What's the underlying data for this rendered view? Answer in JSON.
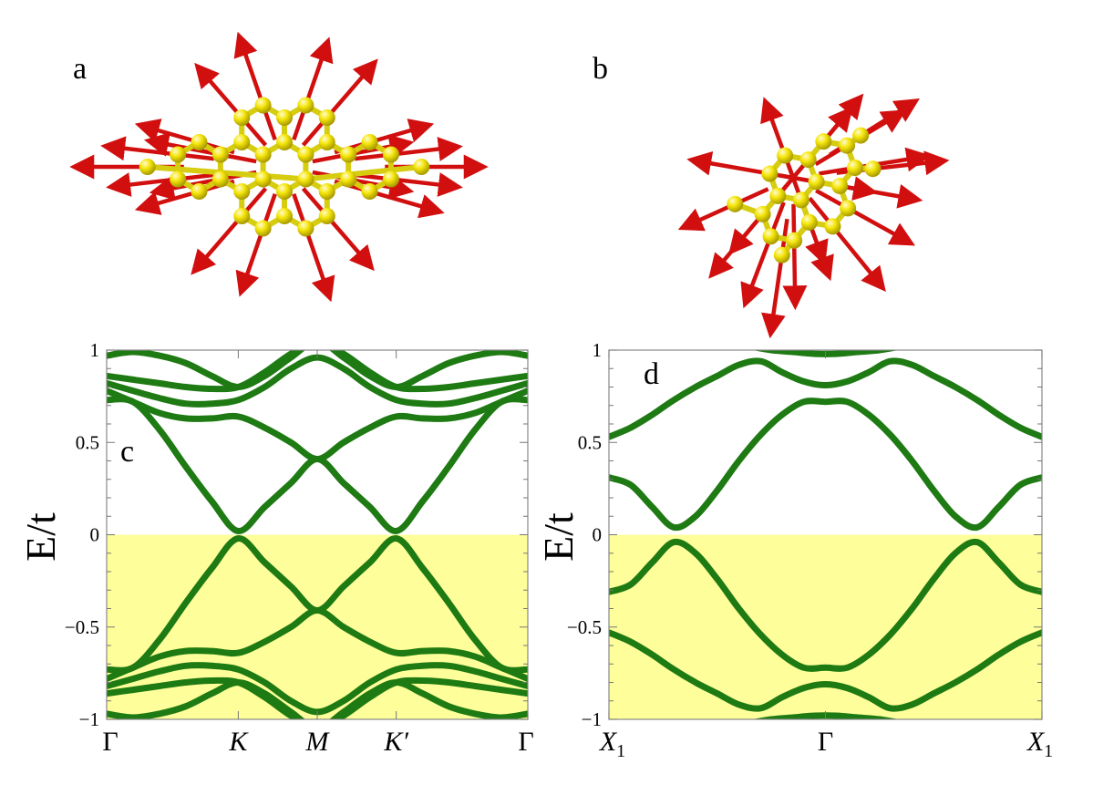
{
  "panels": {
    "a": {
      "letter": "a"
    },
    "b": {
      "letter": "b"
    },
    "c": {
      "letter": "c",
      "ylabel": "E/t",
      "yticks": [
        "1",
        "0.5",
        "0",
        "−0.5",
        "−1"
      ],
      "xticks": [
        {
          "label": "Γ",
          "italic": false
        },
        {
          "label": "K",
          "italic": true
        },
        {
          "label": "M",
          "italic": true
        },
        {
          "label": "K′",
          "italic": true
        },
        {
          "label": "Γ",
          "italic": false
        }
      ]
    },
    "d": {
      "letter": "d",
      "ylabel": "E/t",
      "yticks": [
        "1",
        "0.5",
        "0",
        "−0.5",
        "−1"
      ],
      "xticks": [
        {
          "label": "X",
          "sub": "1",
          "italic": true
        },
        {
          "label": "Γ",
          "italic": false
        },
        {
          "label": "X",
          "sub": "1",
          "italic": true
        }
      ]
    }
  },
  "colors": {
    "band": "#1e7a12",
    "occupied_shade": "#fefe9a",
    "atom": "#f5e60a",
    "arrow": "#d20f0f"
  },
  "chart_data": [
    {
      "panel": "c",
      "type": "line",
      "xlabel": "",
      "ylabel": "E/t",
      "ylim": [
        -1.0,
        1.0
      ],
      "x_ticks": [
        "Γ",
        "K",
        "M",
        "K′",
        "Γ"
      ],
      "x_tick_positions": [
        0,
        1,
        1.6,
        2.2,
        3.2
      ],
      "xlim": [
        0,
        3.2
      ],
      "shaded_region": {
        "y_from": -1.0,
        "y_to": 0.0
      },
      "series": [
        {
          "x": [
            0,
            0.2,
            0.4,
            0.6,
            0.8,
            1.0,
            1.2,
            1.4,
            1.6,
            1.8,
            2.0,
            2.2,
            2.4,
            2.6,
            2.8,
            3.0,
            3.2
          ],
          "y": [
            0.73,
            0.72,
            0.57,
            0.37,
            0.18,
            0.02,
            0.15,
            0.28,
            0.41,
            0.28,
            0.15,
            0.02,
            0.18,
            0.37,
            0.57,
            0.72,
            0.73
          ]
        },
        {
          "x": [
            0,
            0.2,
            0.4,
            0.6,
            0.8,
            1.0,
            1.2,
            1.4,
            1.6,
            1.8,
            2.0,
            2.2,
            2.4,
            2.6,
            2.8,
            3.0,
            3.2
          ],
          "y": [
            0.78,
            0.72,
            0.66,
            0.63,
            0.63,
            0.64,
            0.58,
            0.5,
            0.41,
            0.5,
            0.58,
            0.64,
            0.63,
            0.63,
            0.66,
            0.72,
            0.78
          ]
        },
        {
          "x": [
            0,
            0.2,
            0.4,
            0.6,
            0.8,
            1.0,
            1.2,
            1.4,
            1.6,
            1.8,
            2.0,
            2.2,
            2.4,
            2.6,
            2.8,
            3.0,
            3.2
          ],
          "y": [
            0.82,
            0.78,
            0.74,
            0.71,
            0.71,
            0.73,
            0.8,
            0.9,
            0.96,
            0.9,
            0.8,
            0.73,
            0.71,
            0.71,
            0.74,
            0.78,
            0.82
          ]
        },
        {
          "x": [
            0,
            0.2,
            0.4,
            0.6,
            0.8,
            1.0,
            1.2,
            1.4,
            1.6,
            1.8,
            2.0,
            2.2,
            2.4,
            2.6,
            2.8,
            3.0,
            3.2
          ],
          "y": [
            0.86,
            0.84,
            0.82,
            0.8,
            0.79,
            0.8,
            0.88,
            0.98,
            1.05,
            0.98,
            0.88,
            0.8,
            0.79,
            0.8,
            0.82,
            0.84,
            0.86
          ]
        },
        {
          "x": [
            0,
            0.2,
            0.4,
            0.6,
            0.8,
            1.0,
            1.2,
            1.4,
            1.6,
            1.8,
            2.0,
            2.2,
            2.4,
            2.6,
            2.8,
            3.0,
            3.2
          ],
          "y": [
            0.97,
            0.99,
            0.97,
            0.93,
            0.86,
            0.8,
            0.86,
            0.96,
            1.05,
            0.96,
            0.86,
            0.8,
            0.86,
            0.93,
            0.97,
            0.99,
            0.97
          ]
        },
        {
          "x": [
            0,
            0.2,
            0.4,
            0.6,
            0.8,
            1.0,
            1.2,
            1.4,
            1.6,
            1.8,
            2.0,
            2.2,
            2.4,
            2.6,
            2.8,
            3.0,
            3.2
          ],
          "y": [
            -0.73,
            -0.72,
            -0.57,
            -0.37,
            -0.18,
            -0.02,
            -0.15,
            -0.28,
            -0.41,
            -0.28,
            -0.15,
            -0.02,
            -0.18,
            -0.37,
            -0.57,
            -0.72,
            -0.73
          ]
        },
        {
          "x": [
            0,
            0.2,
            0.4,
            0.6,
            0.8,
            1.0,
            1.2,
            1.4,
            1.6,
            1.8,
            2.0,
            2.2,
            2.4,
            2.6,
            2.8,
            3.0,
            3.2
          ],
          "y": [
            -0.78,
            -0.72,
            -0.66,
            -0.63,
            -0.63,
            -0.64,
            -0.58,
            -0.5,
            -0.41,
            -0.5,
            -0.58,
            -0.64,
            -0.63,
            -0.63,
            -0.66,
            -0.72,
            -0.78
          ]
        },
        {
          "x": [
            0,
            0.2,
            0.4,
            0.6,
            0.8,
            1.0,
            1.2,
            1.4,
            1.6,
            1.8,
            2.0,
            2.2,
            2.4,
            2.6,
            2.8,
            3.0,
            3.2
          ],
          "y": [
            -0.82,
            -0.78,
            -0.74,
            -0.71,
            -0.71,
            -0.73,
            -0.8,
            -0.9,
            -0.96,
            -0.9,
            -0.8,
            -0.73,
            -0.71,
            -0.71,
            -0.74,
            -0.78,
            -0.82
          ]
        },
        {
          "x": [
            0,
            0.2,
            0.4,
            0.6,
            0.8,
            1.0,
            1.2,
            1.4,
            1.6,
            1.8,
            2.0,
            2.2,
            2.4,
            2.6,
            2.8,
            3.0,
            3.2
          ],
          "y": [
            -0.86,
            -0.84,
            -0.82,
            -0.8,
            -0.79,
            -0.8,
            -0.88,
            -0.98,
            -1.05,
            -0.98,
            -0.88,
            -0.8,
            -0.79,
            -0.8,
            -0.82,
            -0.84,
            -0.86
          ]
        },
        {
          "x": [
            0,
            0.2,
            0.4,
            0.6,
            0.8,
            1.0,
            1.2,
            1.4,
            1.6,
            1.8,
            2.0,
            2.2,
            2.4,
            2.6,
            2.8,
            3.0,
            3.2
          ],
          "y": [
            -0.97,
            -0.99,
            -0.97,
            -0.93,
            -0.86,
            -0.8,
            -0.86,
            -0.96,
            -1.05,
            -0.96,
            -0.86,
            -0.8,
            -0.86,
            -0.93,
            -0.97,
            -0.99,
            -0.97
          ]
        }
      ]
    },
    {
      "panel": "d",
      "type": "line",
      "xlabel": "",
      "ylabel": "E/t",
      "ylim": [
        -1.0,
        1.0
      ],
      "x_ticks": [
        "X1",
        "Γ",
        "X1"
      ],
      "x_tick_positions": [
        0,
        1,
        2
      ],
      "xlim": [
        0,
        2
      ],
      "shaded_region": {
        "y_from": -1.0,
        "y_to": 0.0
      },
      "series": [
        {
          "x": [
            0,
            0.1,
            0.2,
            0.3,
            0.4,
            0.5,
            0.6,
            0.7,
            0.8,
            0.9,
            1.0,
            1.1,
            1.2,
            1.3,
            1.4,
            1.5,
            1.6,
            1.7,
            1.8,
            1.9,
            2.0
          ],
          "y": [
            0.31,
            0.27,
            0.15,
            0.04,
            0.1,
            0.24,
            0.4,
            0.54,
            0.65,
            0.72,
            0.72,
            0.72,
            0.65,
            0.54,
            0.4,
            0.24,
            0.1,
            0.04,
            0.15,
            0.27,
            0.31
          ]
        },
        {
          "x": [
            0,
            0.1,
            0.2,
            0.3,
            0.4,
            0.5,
            0.6,
            0.7,
            0.8,
            0.9,
            1.0,
            1.1,
            1.2,
            1.3,
            1.4,
            1.5,
            1.6,
            1.7,
            1.8,
            1.9,
            2.0
          ],
          "y": [
            0.53,
            0.58,
            0.65,
            0.73,
            0.8,
            0.86,
            0.92,
            0.94,
            0.88,
            0.83,
            0.81,
            0.83,
            0.88,
            0.94,
            0.92,
            0.86,
            0.8,
            0.73,
            0.65,
            0.58,
            0.53
          ]
        },
        {
          "x": [
            0.55,
            0.65,
            0.75,
            0.85,
            0.95,
            1.05,
            1.15,
            1.25,
            1.35,
            1.45
          ],
          "y": [
            1.04,
            1.02,
            1.0,
            0.99,
            0.98,
            0.98,
            0.99,
            1.0,
            1.02,
            1.04
          ]
        },
        {
          "x": [
            0,
            0.1,
            0.2,
            0.3,
            0.4,
            0.5,
            0.6,
            0.7,
            0.8,
            0.9,
            1.0,
            1.1,
            1.2,
            1.3,
            1.4,
            1.5,
            1.6,
            1.7,
            1.8,
            1.9,
            2.0
          ],
          "y": [
            -0.31,
            -0.27,
            -0.15,
            -0.04,
            -0.1,
            -0.24,
            -0.4,
            -0.54,
            -0.65,
            -0.72,
            -0.72,
            -0.72,
            -0.65,
            -0.54,
            -0.4,
            -0.24,
            -0.1,
            -0.04,
            -0.15,
            -0.27,
            -0.31
          ]
        },
        {
          "x": [
            0,
            0.1,
            0.2,
            0.3,
            0.4,
            0.5,
            0.6,
            0.7,
            0.8,
            0.9,
            1.0,
            1.1,
            1.2,
            1.3,
            1.4,
            1.5,
            1.6,
            1.7,
            1.8,
            1.9,
            2.0
          ],
          "y": [
            -0.53,
            -0.58,
            -0.65,
            -0.73,
            -0.8,
            -0.86,
            -0.92,
            -0.94,
            -0.88,
            -0.83,
            -0.81,
            -0.83,
            -0.88,
            -0.94,
            -0.92,
            -0.86,
            -0.8,
            -0.73,
            -0.65,
            -0.58,
            -0.53
          ]
        },
        {
          "x": [
            0.55,
            0.65,
            0.75,
            0.85,
            0.95,
            1.05,
            1.15,
            1.25,
            1.35,
            1.45
          ],
          "y": [
            -1.04,
            -1.02,
            -1.0,
            -0.99,
            -0.98,
            -0.98,
            -0.99,
            -1.0,
            -1.02,
            -1.04
          ]
        }
      ]
    }
  ]
}
